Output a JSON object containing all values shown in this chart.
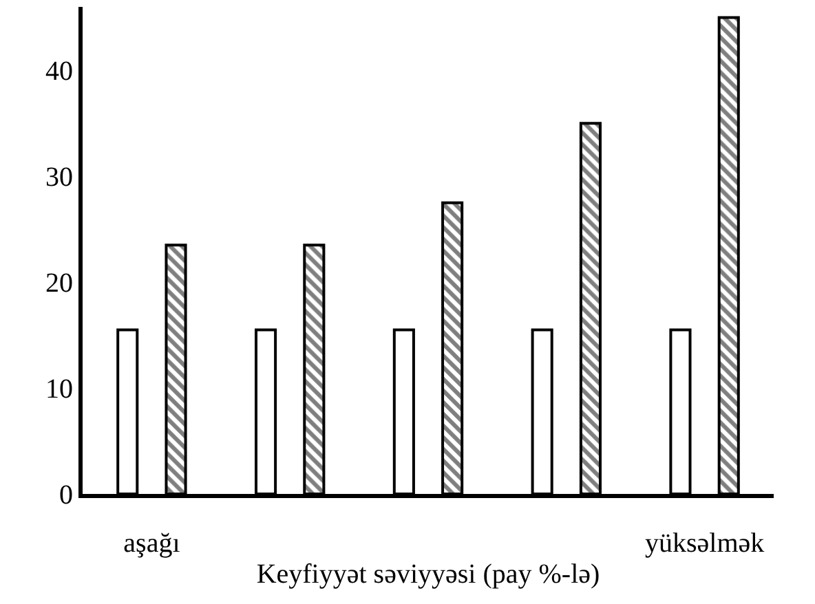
{
  "chart_data": {
    "type": "bar",
    "xlabel": "Keyfiyyət səviyyəsi (pay %-lə)",
    "categories": [
      "aşağı",
      null,
      null,
      null,
      "yüksəlmək"
    ],
    "series": [
      {
        "color": "#ffffff",
        "values": [
          15.5,
          15.5,
          15.5,
          15.5,
          15.5
        ]
      },
      {
        "color": "#000000",
        "values": [
          23.5,
          23.5,
          27.5,
          35,
          45
        ]
      }
    ],
    "ylim": [
      0,
      46
    ],
    "yticks": [
      0,
      10,
      20,
      30,
      40
    ]
  }
}
